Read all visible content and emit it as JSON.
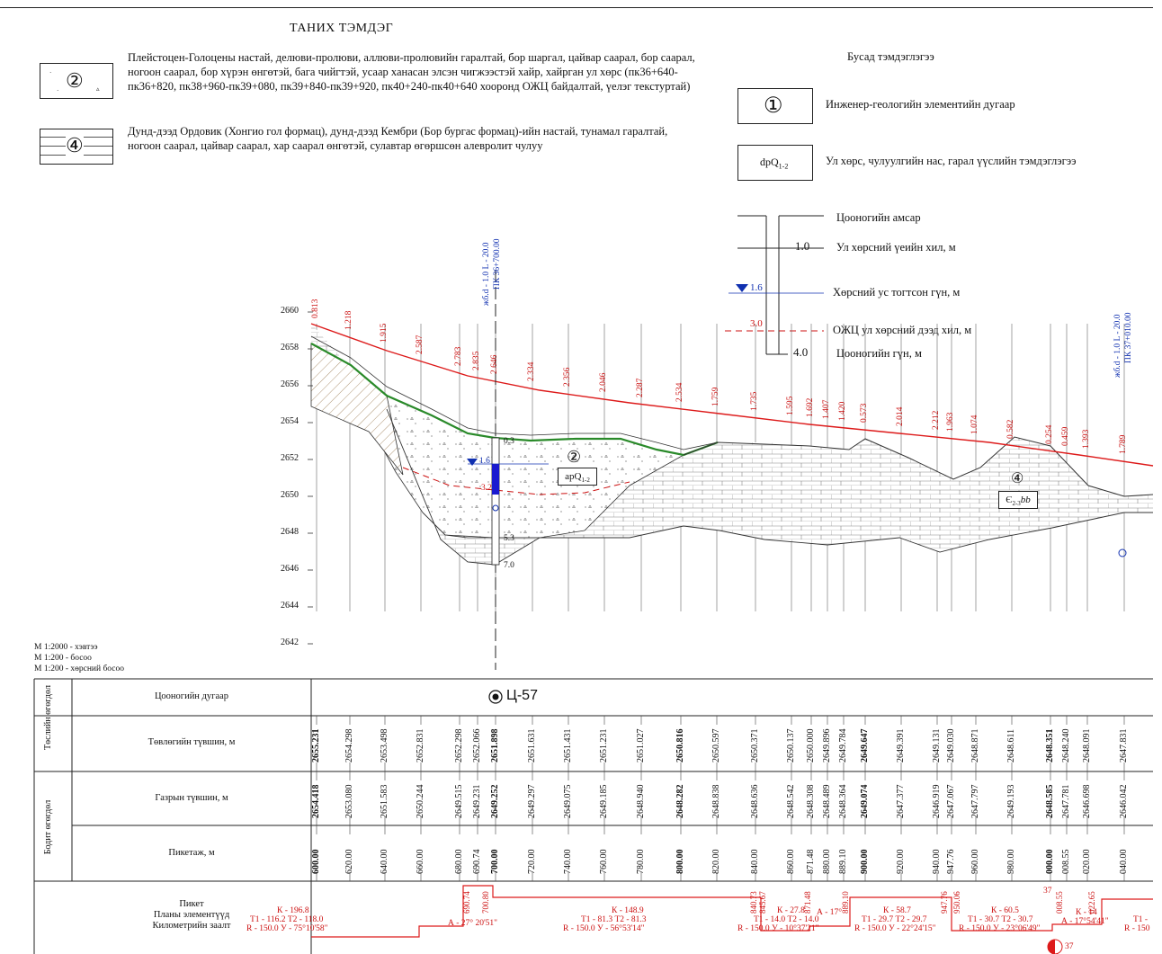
{
  "legend": {
    "title": "ТАНИХ ТЭМДЭГ",
    "unit2": {
      "symbol": "②",
      "text": "Плейстоцен-Голоцены настай, делюви-пролюви, аллюви-пролювийн гаралтай, бор шаргал, цайвар саарал, бор саарал, ногоон саарал, бор хүрэн өнгөтэй, бага чийгтэй, усаар ханасан элсэн чигжээстэй хайр, хайрган ул хөрс (пк36+640-пк36+820, пк38+960-пк39+080, пк39+840-пк39+920, пк40+240-пк40+640 хооронд ОЖЦ байдалтай, үелэг текстуртай)"
    },
    "unit4": {
      "symbol": "④",
      "text": "Дунд-дээд Ордовик (Хонгио гол формац), дунд-дээд Кембри (Бор бургас формац)-ийн настай, тунамал гаралтай, ногоон саарал, цайвар саарал, хар саарал өнгөтэй, сулавтар өгөршсөн алевролит чулуу"
    },
    "other_title": "Бусад тэмдэглэгээ",
    "ige": {
      "symbol": "①",
      "text": "Инженер-геологийн элементийн дугаар"
    },
    "dp": {
      "symbol": "dpQ",
      "sub": "1-2",
      "text": "Ул хөрс, чулуулгийн нас, гарал үүслийн тэмдэглэгээ"
    },
    "borehole": {
      "mouth": "Цооногийн амсар",
      "layer_depth_val": "1.0",
      "layer_depth": "Ул хөрсний үеийн хил, м",
      "water_val": "1.6",
      "water": "Хөрсний ус тогтсон гүн, м",
      "ojc_val": "3.0",
      "ojc": "ОЖЦ ул хөрсний дээд хил, м",
      "depth_val": "4.0",
      "depth": "Цооногийн гүн, м"
    }
  },
  "profile": {
    "y_ticks": [
      "2660",
      "2658",
      "2656",
      "2654",
      "2652",
      "2650",
      "2648",
      "2646",
      "2644",
      "2642"
    ],
    "top_label_1": "жб.d - 1.0 L - 20.0",
    "top_label_1b": "ПК 36+700.00",
    "top_label_2": "жб.d - 1.0 L - 20.0",
    "top_label_2b": "ПК 37+010.00",
    "elevations": [
      "0.813",
      "1.218",
      "1.915",
      "2.587",
      "2.783",
      "2.835",
      "2.646",
      "2.334",
      "2.356",
      "2.046",
      "2.287",
      "2.534",
      "1.759",
      "1.735",
      "1.595",
      "1.692",
      "1.407",
      "1.420",
      "0.573",
      "2.014",
      "2.212",
      "1.963",
      "1.074",
      "0.582",
      "0.254",
      "0.459",
      "1.393",
      "1.789"
    ],
    "bh_top": "0.3",
    "bh_water": "1.6",
    "bh_ojc": "3.2",
    "bh_layer": "5.3",
    "bh_bottom": "7.0",
    "unit2_label": "②",
    "unit2_age": "apQ",
    "unit2_sub": "1-2",
    "unit4_label": "④",
    "unit4_age": "Є",
    "unit4_sub": "2-3",
    "unit4_suffix": "bb",
    "scale_h": "М 1:2000 - хэвтээ",
    "scale_v": "М 1:200 - босоо",
    "scale_g": "М 1:200 - хөрсний босоо"
  },
  "table": {
    "group1": "Төслийн өгөгдөл",
    "group2": "Бодит өгөгдөл",
    "row_bh": "Цооногийн дугаар",
    "bh_name": "Ц-57",
    "row_design": "Төвлөгийн түвшин, м",
    "row_ground": "Газрын түвшин, м",
    "row_picket": "Пикетаж, м",
    "row_plan": "Пикет\nПланы элементүүд\nКилометрийн заалт",
    "design": [
      "2655.231",
      "2654.298",
      "2653.498",
      "2652.831",
      "2652.298",
      "2652.066",
      "2651.898",
      "2651.631",
      "2651.431",
      "2651.231",
      "2651.027",
      "2650.816",
      "2650.597",
      "2650.371",
      "2650.137",
      "2650.000",
      "2649.896",
      "2649.784",
      "2649.647",
      "2649.391",
      "2649.131",
      "2649.030",
      "2648.871",
      "2648.611",
      "2648.351",
      "2648.240",
      "2648.091",
      "2647.831"
    ],
    "ground": [
      "2654.418",
      "2653.080",
      "2651.583",
      "2650.244",
      "2649.515",
      "2649.231",
      "2649.252",
      "2649.297",
      "2649.075",
      "2649.185",
      "2648.940",
      "2648.282",
      "2648.838",
      "2648.636",
      "2648.542",
      "2648.308",
      "2648.489",
      "2648.364",
      "2649.074",
      "2647.377",
      "2646.919",
      "2647.067",
      "2647.797",
      "2649.193",
      "2648.585",
      "2647.781",
      "2646.698",
      "2646.042"
    ],
    "picket": [
      "600.00",
      "620.00",
      "640.00",
      "660.00",
      "680.00",
      "690.74",
      "700.00",
      "720.00",
      "740.00",
      "760.00",
      "780.00",
      "800.00",
      "820.00",
      "840.00",
      "860.00",
      "871.48",
      "880.00",
      "889.10",
      "900.00",
      "920.00",
      "940.00",
      "947.76",
      "960.00",
      "980.00",
      "000.00",
      "008.55",
      "020.00",
      "040.00"
    ],
    "plan": {
      "c1_k": "К - 196.8",
      "c1_t": "Т1 - 116.2 Т2 - 118.0",
      "c1_r": "R - 150.0 У - 75°10'58\"",
      "a1": "А - 27° 20'51\"",
      "c2_k": "К - 148.9",
      "c2_t": "Т1 - 81.3 Т2 - 81.3",
      "c2_r": "R - 150.0 У - 56°53'14\"",
      "c3_k": "К - 27.8",
      "c3_t": "Т1 - 14.0 Т2 - 14.0",
      "c3_r": "R - 150.0 У - 10°37'21\"",
      "a3": "А - 17°",
      "c4_k": "К - 58.7",
      "c4_t": "Т1 - 29.7 Т2 - 29.7",
      "c4_r": "R - 150.0 У - 22°24'15\"",
      "c5_k": "К - 60.5",
      "c5_t": "Т1 - 30.7 Т2 - 30.7",
      "c5_r": "R - 150.0 У - 23°06'49\"",
      "c6_k": "К - 14",
      "c6_a": "А - 17°54'41\"",
      "c7_t": "Т1 -",
      "c7_r": "R - 150",
      "marks": [
        "690.74",
        "700.80",
        "840.73",
        "845.67",
        "871.48",
        "889.10",
        "947.76",
        "950.06",
        "008.55",
        "022.65"
      ],
      "km": "37",
      "km2": "37"
    }
  }
}
